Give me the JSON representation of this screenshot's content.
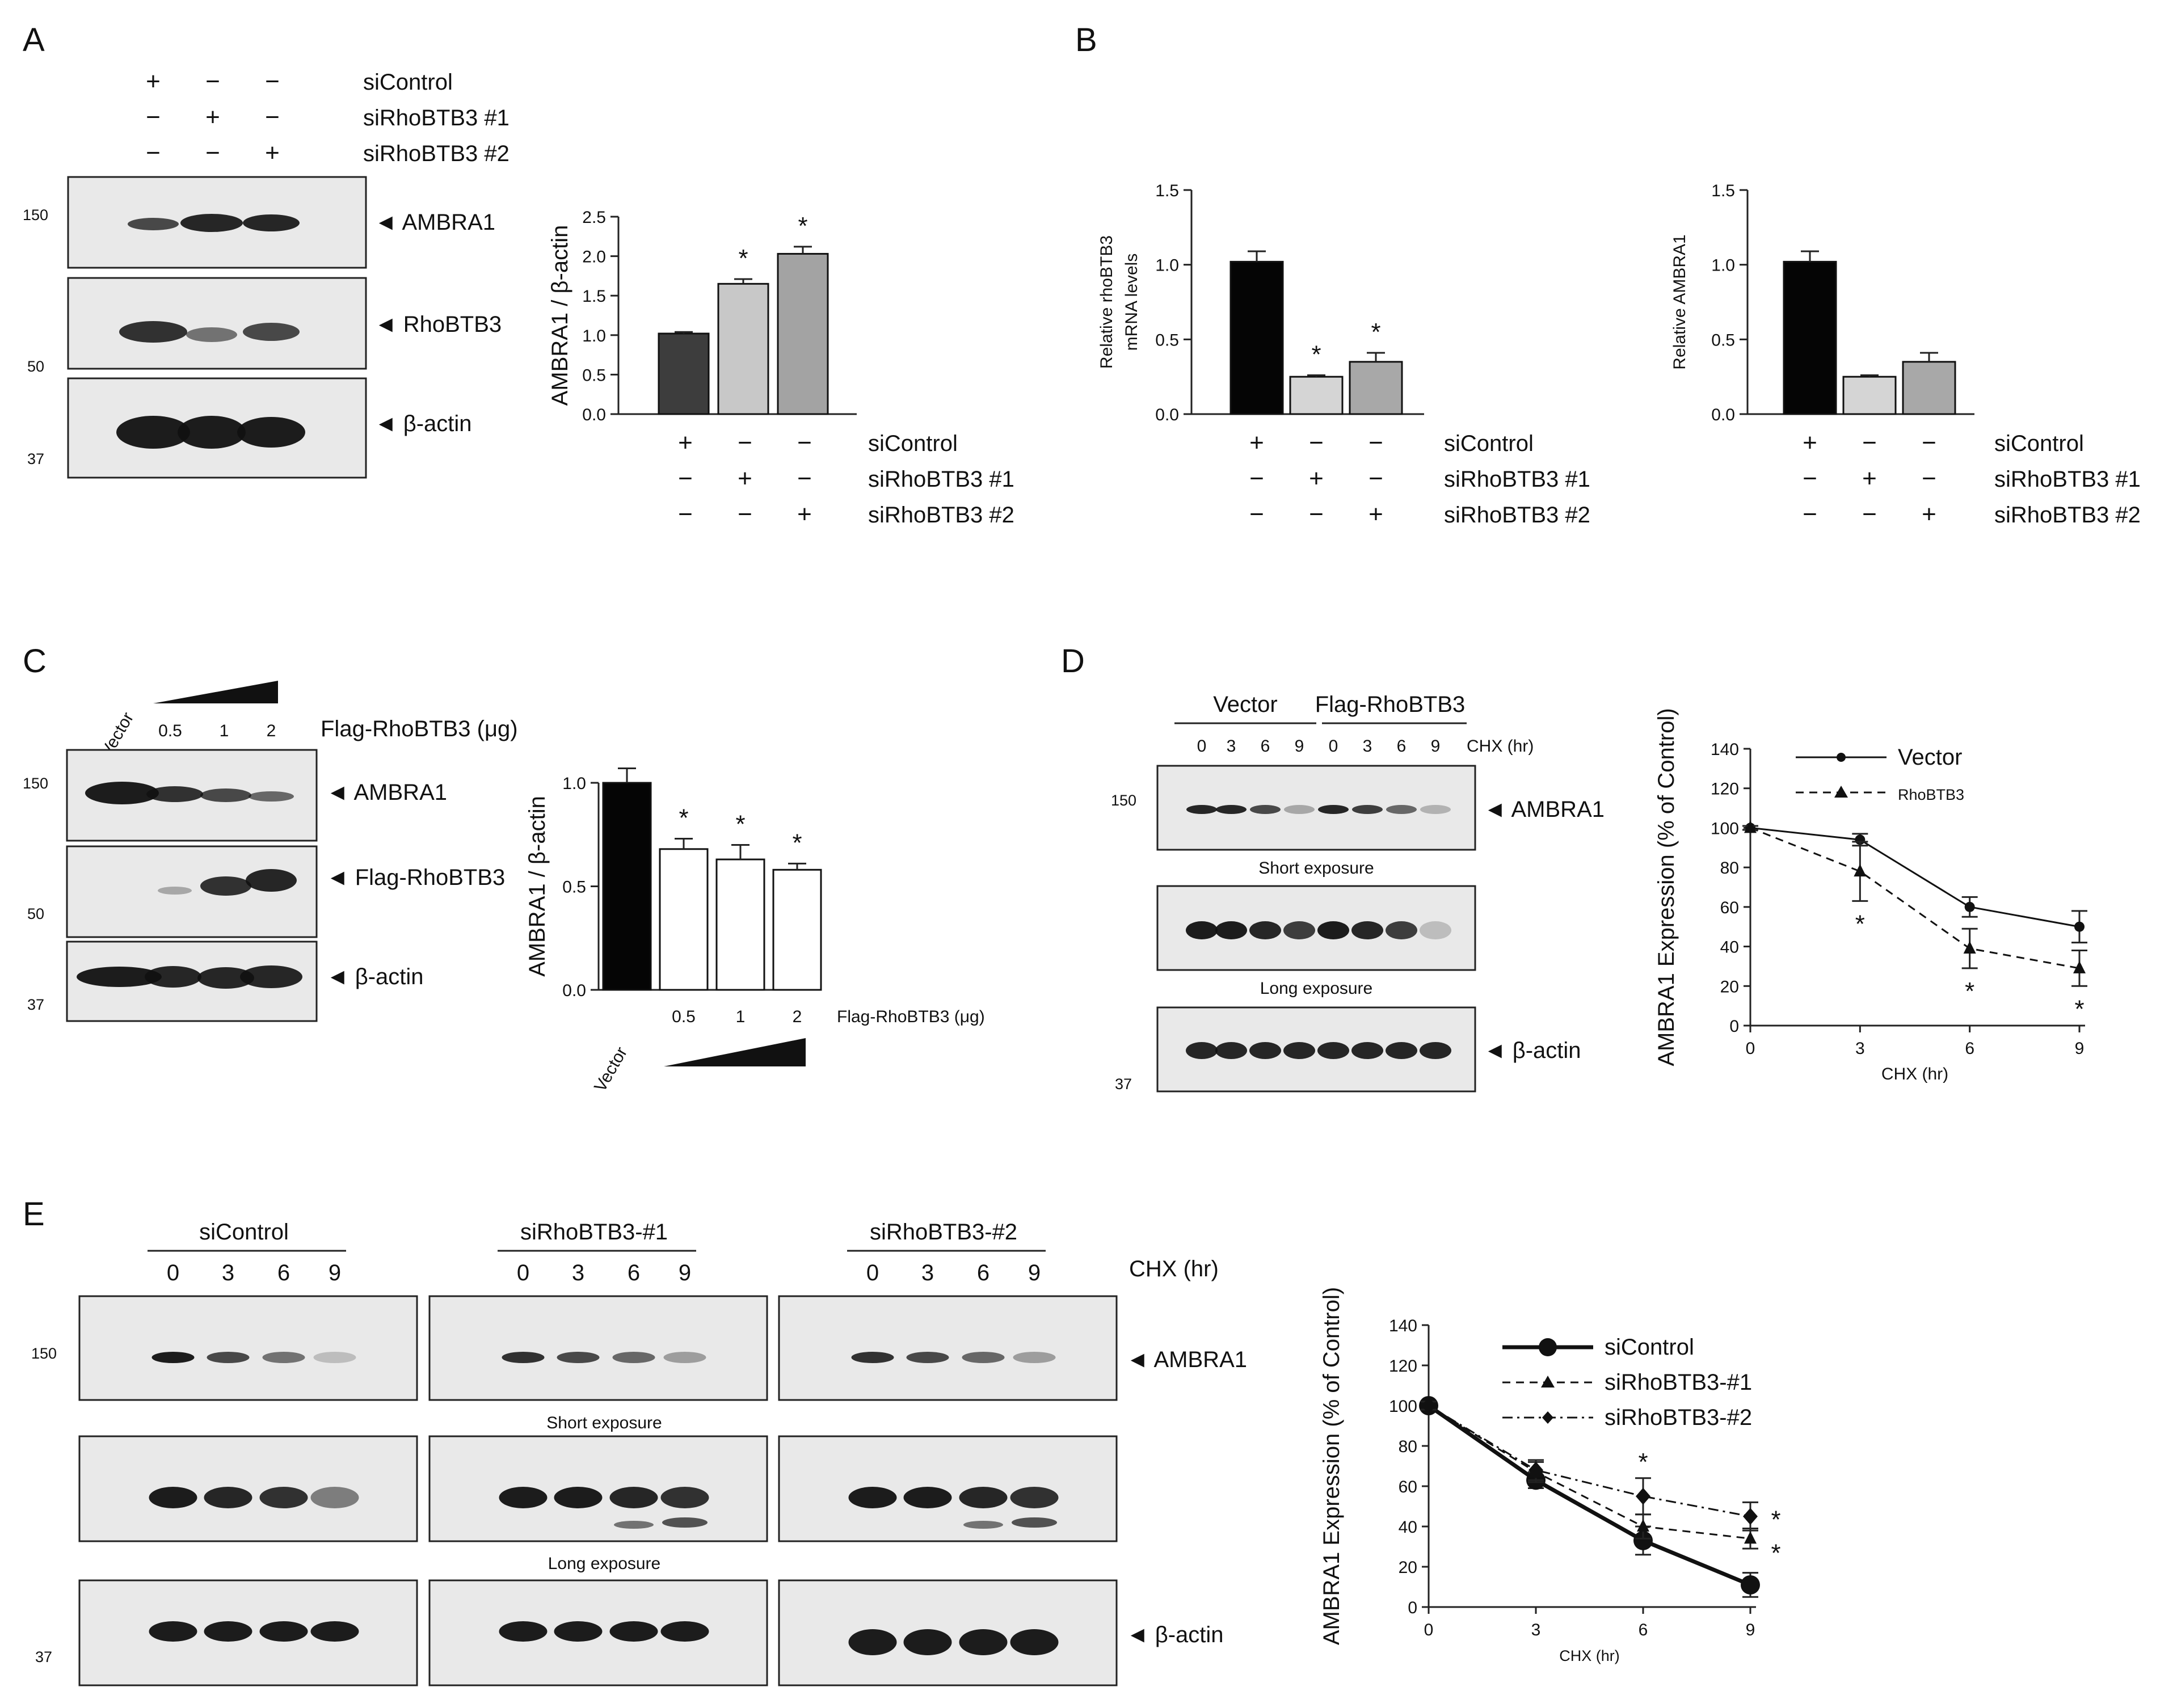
{
  "panel_letters": [
    "A",
    "B",
    "C",
    "D",
    "E"
  ],
  "common": {
    "plus": "+",
    "minus": "−",
    "siControl": "siControl",
    "si1": "siRhoBTB3 #1",
    "si2": "siRhoBTB3 #2",
    "mw150": "150",
    "mw50": "50",
    "mw37": "37",
    "ambra1": "◄ AMBRA1",
    "rhobtb3": "◄ RhoBTB3",
    "bactin": "◄  β-actin",
    "flag_rhobtb3": "◄ Flag-RhoBTB3",
    "star": "*"
  },
  "panelA": {
    "rows": [
      [
        "+",
        "−",
        "−"
      ],
      [
        "−",
        "+",
        "−"
      ],
      [
        "−",
        "−",
        "+"
      ]
    ]
  },
  "panelC": {
    "vector": "Vector",
    "doses": [
      "0.5",
      "1",
      "2"
    ],
    "header": "Flag-RhoBTB3  (μg)"
  },
  "panelD": {
    "vector": "Vector",
    "flag": "Flag-RhoBTB3",
    "times": [
      "0",
      "3",
      "6",
      "9",
      "0",
      "3",
      "6",
      "9"
    ],
    "chx": "CHX (hr)",
    "short": "Short exposure",
    "long": "Long exposure"
  },
  "panelE": {
    "groups": [
      "siControl",
      "siRhoBTB3-#1",
      "siRhoBTB3-#2"
    ],
    "times": [
      "0",
      "3",
      "6",
      "9"
    ],
    "chx": "CHX  (hr)",
    "short": "Short exposure",
    "long": "Long exposure"
  },
  "chart_data": [
    {
      "id": "A-bar",
      "type": "bar",
      "categories": [
        "siControl",
        "siRhoBTB3 #1",
        "siRhoBTB3 #2"
      ],
      "values": [
        1.02,
        1.65,
        2.03
      ],
      "errors": [
        0.02,
        0.06,
        0.09
      ],
      "significant": [
        false,
        true,
        true
      ],
      "colors": [
        "#3d3d3d",
        "#c8c8c8",
        "#a3a3a3"
      ],
      "ylabel": "AMBRA1 / β-actin",
      "ylim": [
        0,
        2.5
      ],
      "yticks": [
        "0.0",
        "0.5",
        "1.0",
        "1.5",
        "2.0",
        "2.5"
      ]
    },
    {
      "id": "B-bar1",
      "type": "bar",
      "categories": [
        "siControl",
        "siRhoBTB3 #1",
        "siRhoBTB3 #2"
      ],
      "values": [
        1.02,
        0.25,
        0.35
      ],
      "errors": [
        0.07,
        0.01,
        0.06
      ],
      "significant": [
        false,
        true,
        true
      ],
      "colors": [
        "#050505",
        "#d5d5d5",
        "#a8a8a8"
      ],
      "ylabel": [
        "Relative rhoBTB3",
        "mRNA levels"
      ],
      "ylim": [
        0,
        1.5
      ],
      "yticks": [
        "0.0",
        "0.5",
        "1.0",
        "1.5"
      ]
    },
    {
      "id": "B-bar2",
      "type": "bar",
      "categories": [
        "siControl",
        "siRhoBTB3 #1",
        "siRhoBTB3 #2"
      ],
      "values": [
        1.02,
        0.25,
        0.35
      ],
      "errors": [
        0.07,
        0.01,
        0.06
      ],
      "significant": [
        false,
        false,
        false
      ],
      "colors": [
        "#050505",
        "#d5d5d5",
        "#a8a8a8"
      ],
      "ylabel": [
        "Relative AMBRA1"
      ],
      "ylim": [
        0,
        1.5
      ],
      "yticks": [
        "0.0",
        "0.5",
        "1.0",
        "1.5"
      ]
    },
    {
      "id": "C-bar",
      "type": "bar",
      "categories": [
        "Vector",
        "0.5",
        "1",
        "2"
      ],
      "values": [
        1.0,
        0.68,
        0.63,
        0.58
      ],
      "errors": [
        0.07,
        0.05,
        0.07,
        0.03
      ],
      "significant": [
        false,
        true,
        true,
        true
      ],
      "colors": [
        "#050505",
        "#ffffff",
        "#ffffff",
        "#ffffff"
      ],
      "ylabel": "AMBRA1 / β-actin",
      "xlabel": "Flag-RhoBTB3  (μg)",
      "ylim": [
        0,
        1.0
      ],
      "yticks": [
        "0.0",
        "0.5",
        "1.0"
      ]
    },
    {
      "id": "D-line",
      "type": "line",
      "x": [
        0,
        3,
        6,
        9
      ],
      "series": [
        {
          "name": "Vector",
          "values": [
            100,
            94,
            60,
            50
          ],
          "errors": [
            1,
            3,
            5,
            8
          ],
          "style": "solid",
          "marker": "circle"
        },
        {
          "name": "RhoBTB3",
          "values": [
            100,
            78,
            39,
            29
          ],
          "errors": [
            1,
            15,
            10,
            9
          ],
          "style": "dashed",
          "marker": "triangle"
        }
      ],
      "significant_x": [
        3,
        6,
        9
      ],
      "xlabel": "CHX (hr)",
      "ylabel": "AMBRA1 Expression (% of Control)",
      "ylim": [
        0,
        140
      ],
      "xticks": [
        "0",
        "3",
        "6",
        "9"
      ],
      "yticks": [
        "0",
        "20",
        "40",
        "60",
        "80",
        "100",
        "120",
        "140"
      ]
    },
    {
      "id": "E-line",
      "type": "line",
      "x": [
        0,
        3,
        6,
        9
      ],
      "series": [
        {
          "name": "siControl",
          "values": [
            100,
            63,
            33,
            11
          ],
          "errors": [
            2,
            4,
            7,
            6
          ],
          "style": "thick",
          "marker": "circle"
        },
        {
          "name": "siRhoBTB3-#1",
          "values": [
            100,
            67,
            40,
            34
          ],
          "errors": [
            2,
            5,
            6,
            5
          ],
          "style": "dashed",
          "marker": "triangle"
        },
        {
          "name": "siRhoBTB3-#2",
          "values": [
            100,
            68,
            55,
            45
          ],
          "errors": [
            2,
            5,
            9,
            7
          ],
          "style": "dashdot",
          "marker": "diamond"
        }
      ],
      "significant_x": [
        6,
        9
      ],
      "xlabel": "CHX (hr)",
      "ylabel": "AMBRA1 Expression (% of Control)",
      "ylim": [
        0,
        140
      ],
      "xticks": [
        "0",
        "3",
        "6",
        "9"
      ],
      "yticks": [
        "0",
        "20",
        "40",
        "60",
        "80",
        "100",
        "120",
        "140"
      ]
    }
  ]
}
